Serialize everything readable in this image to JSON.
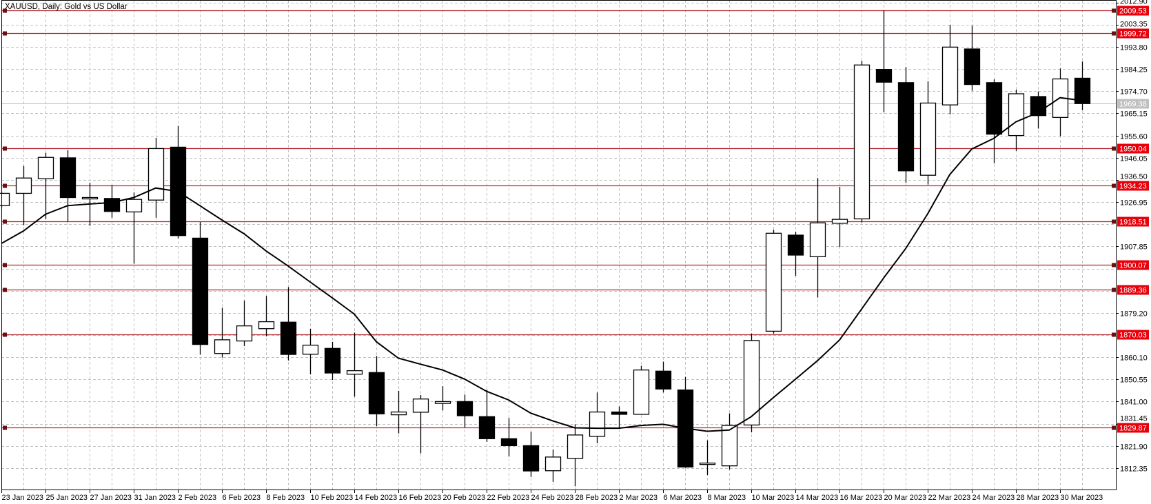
{
  "chart_data": {
    "type": "candlestick",
    "title": "XAUUSD, Daily:  Gold vs US Dollar",
    "symbol": "XAUUSD",
    "timeframe": "Daily",
    "ylim": [
      1803.1,
      2014.0
    ],
    "y_tick_step": 9.55,
    "grid": true,
    "y_ticks": [
      "2012.90",
      "2003.35",
      "1993.80",
      "1984.25",
      "1974.70",
      "1965.15",
      "1955.60",
      "1946.05",
      "1936.50",
      "1926.95",
      "1907.85",
      "1879.20",
      "1860.10",
      "1850.55",
      "1841.00",
      "1831.45",
      "1821.90",
      "1812.35"
    ],
    "x_ticks": [
      {
        "index": 0,
        "label": "23 Jan 2023"
      },
      {
        "index": 2,
        "label": "25 Jan 2023"
      },
      {
        "index": 4,
        "label": "27 Jan 2023"
      },
      {
        "index": 6,
        "label": "31 Jan 2023"
      },
      {
        "index": 8,
        "label": "2 Feb 2023"
      },
      {
        "index": 10,
        "label": "6 Feb 2023"
      },
      {
        "index": 12,
        "label": "8 Feb 2023"
      },
      {
        "index": 14,
        "label": "10 Feb 2023"
      },
      {
        "index": 16,
        "label": "14 Feb 2023"
      },
      {
        "index": 18,
        "label": "16 Feb 2023"
      },
      {
        "index": 20,
        "label": "20 Feb 2023"
      },
      {
        "index": 22,
        "label": "22 Feb 2023"
      },
      {
        "index": 24,
        "label": "24 Feb 2023"
      },
      {
        "index": 26,
        "label": "28 Feb 2023"
      },
      {
        "index": 28,
        "label": "2 Mar 2023"
      },
      {
        "index": 30,
        "label": "6 Mar 2023"
      },
      {
        "index": 32,
        "label": "8 Mar 2023"
      },
      {
        "index": 34,
        "label": "10 Mar 2023"
      },
      {
        "index": 36,
        "label": "14 Mar 2023"
      },
      {
        "index": 38,
        "label": "16 Mar 2023"
      },
      {
        "index": 40,
        "label": "20 Mar 2023"
      },
      {
        "index": 42,
        "label": "22 Mar 2023"
      },
      {
        "index": 44,
        "label": "24 Mar 2023"
      },
      {
        "index": 46,
        "label": "28 Mar 2023"
      },
      {
        "index": 48,
        "label": "30 Mar 2023"
      }
    ],
    "candles": [
      {
        "date": "2023-01-23",
        "o": 1925.4,
        "h": 1931.5,
        "l": 1924.5,
        "c": 1930.7
      },
      {
        "date": "2023-01-24",
        "o": 1930.7,
        "h": 1942.5,
        "l": 1917.0,
        "c": 1937.3
      },
      {
        "date": "2023-01-25",
        "o": 1937.0,
        "h": 1948.2,
        "l": 1919.6,
        "c": 1946.2
      },
      {
        "date": "2023-01-26",
        "o": 1946.0,
        "h": 1949.3,
        "l": 1918.6,
        "c": 1928.9
      },
      {
        "date": "2023-01-27",
        "o": 1928.7,
        "h": 1935.3,
        "l": 1916.7,
        "c": 1928.9
      },
      {
        "date": "2023-01-30",
        "o": 1928.5,
        "h": 1934.3,
        "l": 1920.2,
        "c": 1922.9
      },
      {
        "date": "2023-01-31",
        "o": 1922.7,
        "h": 1931.1,
        "l": 1900.4,
        "c": 1928.1
      },
      {
        "date": "2023-02-01",
        "o": 1927.8,
        "h": 1954.6,
        "l": 1920.2,
        "c": 1950.0
      },
      {
        "date": "2023-02-02",
        "o": 1950.6,
        "h": 1959.7,
        "l": 1911.3,
        "c": 1912.5
      },
      {
        "date": "2023-02-03",
        "o": 1911.4,
        "h": 1918.4,
        "l": 1861.2,
        "c": 1865.6
      },
      {
        "date": "2023-02-06",
        "o": 1861.7,
        "h": 1881.4,
        "l": 1860.0,
        "c": 1867.6
      },
      {
        "date": "2023-02-07",
        "o": 1867.1,
        "h": 1884.5,
        "l": 1864.9,
        "c": 1873.6
      },
      {
        "date": "2023-02-08",
        "o": 1872.4,
        "h": 1886.5,
        "l": 1869.1,
        "c": 1875.4
      },
      {
        "date": "2023-02-09",
        "o": 1875.2,
        "h": 1890.3,
        "l": 1858.7,
        "c": 1861.3
      },
      {
        "date": "2023-02-10",
        "o": 1861.4,
        "h": 1872.3,
        "l": 1852.7,
        "c": 1865.3
      },
      {
        "date": "2023-02-13",
        "o": 1863.9,
        "h": 1866.7,
        "l": 1850.3,
        "c": 1853.3
      },
      {
        "date": "2023-02-14",
        "o": 1852.8,
        "h": 1870.7,
        "l": 1843.1,
        "c": 1854.3
      },
      {
        "date": "2023-02-15",
        "o": 1853.5,
        "h": 1860.6,
        "l": 1830.4,
        "c": 1835.7
      },
      {
        "date": "2023-02-16",
        "o": 1835.3,
        "h": 1845.6,
        "l": 1827.3,
        "c": 1836.5
      },
      {
        "date": "2023-02-17",
        "o": 1836.4,
        "h": 1843.8,
        "l": 1818.7,
        "c": 1842.1
      },
      {
        "date": "2023-02-20",
        "o": 1840.2,
        "h": 1847.6,
        "l": 1837.2,
        "c": 1841.0
      },
      {
        "date": "2023-02-21",
        "o": 1841.0,
        "h": 1844.0,
        "l": 1829.9,
        "c": 1834.9
      },
      {
        "date": "2023-02-22",
        "o": 1834.5,
        "h": 1846.1,
        "l": 1823.6,
        "c": 1825.0
      },
      {
        "date": "2023-02-23",
        "o": 1825.0,
        "h": 1833.9,
        "l": 1817.3,
        "c": 1822.0
      },
      {
        "date": "2023-02-24",
        "o": 1822.0,
        "h": 1828.0,
        "l": 1808.5,
        "c": 1811.1
      },
      {
        "date": "2023-02-27",
        "o": 1811.2,
        "h": 1820.3,
        "l": 1806.4,
        "c": 1817.1
      },
      {
        "date": "2023-02-28",
        "o": 1816.5,
        "h": 1831.2,
        "l": 1804.5,
        "c": 1826.6
      },
      {
        "date": "2023-03-01",
        "o": 1826.0,
        "h": 1844.9,
        "l": 1823.0,
        "c": 1836.5
      },
      {
        "date": "2023-03-02",
        "o": 1836.5,
        "h": 1838.9,
        "l": 1829.5,
        "c": 1835.5
      },
      {
        "date": "2023-03-03",
        "o": 1835.5,
        "h": 1856.4,
        "l": 1835.5,
        "c": 1854.6
      },
      {
        "date": "2023-03-06",
        "o": 1854.1,
        "h": 1858.2,
        "l": 1844.9,
        "c": 1846.4
      },
      {
        "date": "2023-03-07",
        "o": 1846.0,
        "h": 1851.6,
        "l": 1812.4,
        "c": 1812.8
      },
      {
        "date": "2023-03-08",
        "o": 1813.9,
        "h": 1824.3,
        "l": 1809.3,
        "c": 1814.5
      },
      {
        "date": "2023-03-09",
        "o": 1813.3,
        "h": 1835.9,
        "l": 1811.7,
        "c": 1830.7
      },
      {
        "date": "2023-03-10",
        "o": 1830.9,
        "h": 1870.3,
        "l": 1827.7,
        "c": 1867.3
      },
      {
        "date": "2023-03-13",
        "o": 1871.3,
        "h": 1915.0,
        "l": 1870.3,
        "c": 1913.5
      },
      {
        "date": "2023-03-14",
        "o": 1912.7,
        "h": 1914.2,
        "l": 1895.2,
        "c": 1904.1
      },
      {
        "date": "2023-03-15",
        "o": 1903.4,
        "h": 1937.3,
        "l": 1885.8,
        "c": 1918.0
      },
      {
        "date": "2023-03-16",
        "o": 1917.8,
        "h": 1933.5,
        "l": 1907.6,
        "c": 1919.5
      },
      {
        "date": "2023-03-17",
        "o": 1919.7,
        "h": 1987.8,
        "l": 1918.2,
        "c": 1986.0
      },
      {
        "date": "2023-03-20",
        "o": 1984.1,
        "h": 2009.5,
        "l": 1965.7,
        "c": 1978.6
      },
      {
        "date": "2023-03-21",
        "o": 1978.4,
        "h": 1985.1,
        "l": 1935.3,
        "c": 1940.4
      },
      {
        "date": "2023-03-22",
        "o": 1938.5,
        "h": 1979.0,
        "l": 1934.5,
        "c": 1969.6
      },
      {
        "date": "2023-03-23",
        "o": 1968.8,
        "h": 2003.3,
        "l": 1964.7,
        "c": 1993.7
      },
      {
        "date": "2023-03-24",
        "o": 1992.9,
        "h": 2002.9,
        "l": 1974.9,
        "c": 1977.6
      },
      {
        "date": "2023-03-27",
        "o": 1978.4,
        "h": 1979.8,
        "l": 1943.7,
        "c": 1956.2
      },
      {
        "date": "2023-03-28",
        "o": 1955.6,
        "h": 1975.4,
        "l": 1949.0,
        "c": 1973.6
      },
      {
        "date": "2023-03-29",
        "o": 1972.4,
        "h": 1974.6,
        "l": 1958.6,
        "c": 1964.2
      },
      {
        "date": "2023-03-30",
        "o": 1963.4,
        "h": 1984.5,
        "l": 1955.3,
        "c": 1980.0
      },
      {
        "date": "2023-03-31",
        "o": 1980.3,
        "h": 1987.5,
        "l": 1966.5,
        "c": 1969.38
      }
    ],
    "moving_average": [
      1909.1,
      1914.5,
      1921.7,
      1925.4,
      1926.1,
      1926.7,
      1928.9,
      1933.0,
      1931.5,
      1925.4,
      1919.2,
      1913.3,
      1905.9,
      1899.4,
      1892.5,
      1885.7,
      1878.7,
      1866.8,
      1859.7,
      1857.1,
      1854.6,
      1850.7,
      1845.4,
      1841.7,
      1836.0,
      1832.7,
      1829.7,
      1829.5,
      1829.5,
      1830.7,
      1831.2,
      1829.5,
      1828.2,
      1828.7,
      1834.5,
      1842.7,
      1850.6,
      1858.6,
      1867.5,
      1880.8,
      1894.2,
      1906.9,
      1921.9,
      1938.8,
      1949.8,
      1954.4,
      1961.5,
      1965.5,
      1971.9,
      1970.7
    ],
    "levels": [
      "2009.53",
      "1999.72",
      "1950.04",
      "1934.23",
      "1918.51",
      "1900.07",
      "1889.36",
      "1870.03",
      "1829.87"
    ],
    "bid": "1969.38",
    "colors": {
      "level_line": "#b3232a",
      "level_label": "#e8000b",
      "bid": "#c0c0c0",
      "grid": "#c0c0c0",
      "bull_body": "#ffffff",
      "bear_body": "#000000",
      "ma": "#000000"
    }
  }
}
